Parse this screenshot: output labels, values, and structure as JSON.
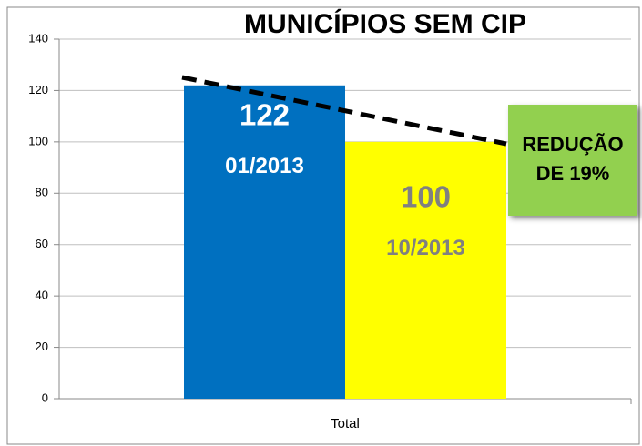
{
  "chart_data": {
    "type": "bar",
    "title": "MUNICÍPIOS SEM CIP",
    "categories": [
      "Total"
    ],
    "series": [
      {
        "name": "01/2013",
        "color": "#0070c0",
        "label_color": "#ffffff",
        "values": [
          122
        ]
      },
      {
        "name": "10/2013",
        "color": "#ffff00",
        "label_color": "#808080",
        "values": [
          100
        ]
      }
    ],
    "ylim": [
      0,
      140
    ],
    "yticks": [
      0,
      20,
      40,
      60,
      80,
      100,
      120,
      140
    ],
    "grid": true,
    "annotation": [
      "REDUÇÃO",
      "DE 19%"
    ],
    "annotation_color": "#92d050"
  }
}
